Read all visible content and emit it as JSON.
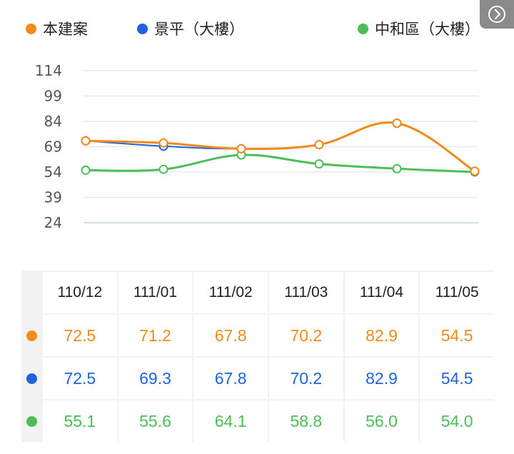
{
  "legend": [
    {
      "label": "本建案",
      "color": "#f28a1b"
    },
    {
      "label": "景平（大樓）",
      "color": "#1f63dc"
    },
    {
      "label": "中和區（大樓）",
      "color": "#4dbd57"
    }
  ],
  "nav_icon": "chevron-right-icon",
  "chart_data": {
    "type": "line",
    "x": [
      "110/12",
      "111/01",
      "111/02",
      "111/03",
      "111/04",
      "111/05"
    ],
    "yticks": [
      114,
      99,
      84,
      69,
      54,
      39,
      24
    ],
    "ylim": [
      24,
      114
    ],
    "grid": true,
    "legend_position": "top",
    "series": [
      {
        "name": "本建案",
        "color": "#f28a1b",
        "values": [
          72.5,
          71.2,
          67.8,
          70.2,
          82.9,
          54.5
        ]
      },
      {
        "name": "景平（大樓）",
        "color": "#1f63dc",
        "values": [
          72.5,
          69.3,
          67.8,
          70.2,
          82.9,
          54.5
        ]
      },
      {
        "name": "中和區（大樓）",
        "color": "#4dbd57",
        "values": [
          55.1,
          55.6,
          64.1,
          58.8,
          56.0,
          54.0
        ]
      }
    ]
  },
  "table": {
    "headers": [
      "110/12",
      "111/01",
      "111/02",
      "111/03",
      "111/04",
      "111/05"
    ],
    "rows": [
      {
        "color": "#f28a1b",
        "values": [
          "72.5",
          "71.2",
          "67.8",
          "70.2",
          "82.9",
          "54.5"
        ]
      },
      {
        "color": "#1f63dc",
        "values": [
          "72.5",
          "69.3",
          "67.8",
          "70.2",
          "82.9",
          "54.5"
        ]
      },
      {
        "color": "#4dbd57",
        "values": [
          "55.1",
          "55.6",
          "64.1",
          "58.8",
          "56.0",
          "54.0"
        ]
      }
    ]
  }
}
